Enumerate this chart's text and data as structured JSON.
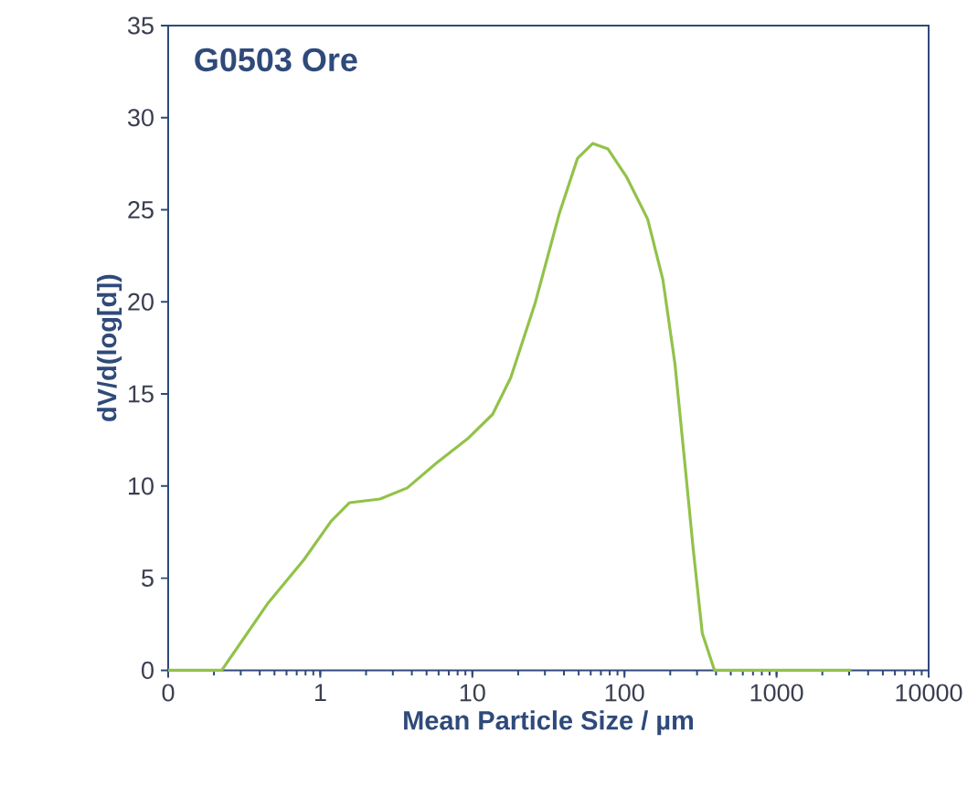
{
  "chart_data": {
    "type": "line",
    "title": "G0503 Ore",
    "xlabel": "Mean Particle Size / µm",
    "ylabel": "dV/d(log[d])",
    "log": "x",
    "grid": false,
    "marker": "none",
    "line_style": "solid",
    "xlim": [
      0.1,
      10000
    ],
    "ylim": [
      0,
      35
    ],
    "xticks": [
      {
        "value": 0.1,
        "label": "0"
      },
      1,
      10,
      100,
      1000,
      10000
    ],
    "yticks": [
      0,
      5,
      10,
      15,
      20,
      25,
      30,
      35
    ],
    "x": [
      0.1,
      0.225,
      0.449,
      0.78,
      1.18,
      1.56,
      2.47,
      3.73,
      5.9,
      9.4,
      13.6,
      17.9,
      25.8,
      37.3,
      49.2,
      62,
      78,
      103,
      142,
      179,
      215,
      247,
      283,
      325,
      391,
      3105
    ],
    "series": [
      {
        "color": "#92c24a",
        "values": [
          0,
          0,
          3.6,
          6.0,
          8.1,
          9.1,
          9.3,
          9.9,
          11.3,
          12.6,
          13.9,
          15.9,
          19.9,
          24.8,
          27.8,
          28.6,
          28.3,
          26.8,
          24.5,
          21.2,
          16.6,
          11.6,
          6.6,
          2.0,
          0,
          0
        ]
      }
    ]
  }
}
